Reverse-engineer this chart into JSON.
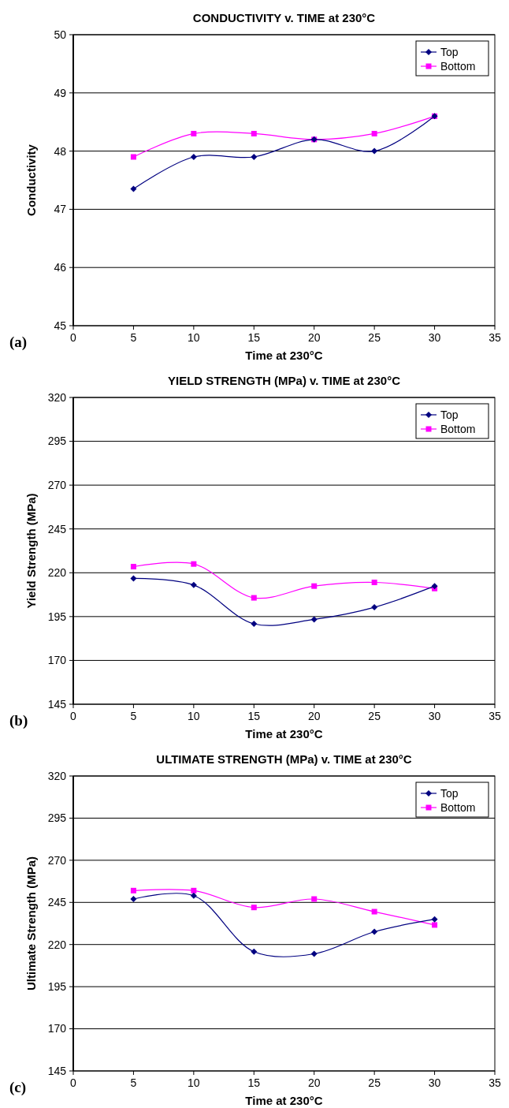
{
  "chart_data": [
    {
      "type": "line",
      "title": "CONDUCTIVITY v. TIME at 230°C",
      "xlabel": "Time at 230°C",
      "ylabel": "Conductivity",
      "annotations": [
        "(a)"
      ],
      "x": [
        5,
        10,
        15,
        20,
        25,
        30
      ],
      "xlim": [
        0,
        35
      ],
      "xticks": [
        0,
        5,
        10,
        15,
        20,
        25,
        30,
        35
      ],
      "ylim": [
        45,
        50
      ],
      "yticks": [
        45,
        46,
        47,
        48,
        49,
        50
      ],
      "grid": "y",
      "legend": "top right",
      "series": [
        {
          "name": "Top",
          "color": "#000080",
          "marker": "diamond",
          "values": [
            47.35,
            47.9,
            47.9,
            48.2,
            48.0,
            48.6
          ]
        },
        {
          "name": "Bottom",
          "color": "#ff00ff",
          "marker": "square",
          "values": [
            47.9,
            48.3,
            48.3,
            48.2,
            48.3,
            48.6
          ]
        }
      ]
    },
    {
      "type": "line",
      "title": "YIELD STRENGTH (MPa) v. TIME at 230°C",
      "xlabel": "Time at 230°C",
      "ylabel": "Yield Strength (MPa)",
      "annotations": [
        "(b)"
      ],
      "x": [
        5,
        10,
        15,
        20,
        25,
        30
      ],
      "xlim": [
        0,
        35
      ],
      "xticks": [
        0,
        5,
        10,
        15,
        20,
        25,
        30,
        35
      ],
      "ylim": [
        145,
        320
      ],
      "yticks": [
        145,
        170,
        195,
        220,
        245,
        270,
        295,
        320
      ],
      "grid": "y",
      "legend": "top right",
      "series": [
        {
          "name": "Top",
          "color": "#000080",
          "marker": "diamond",
          "values": [
            216.8,
            213,
            190.9,
            193.4,
            200.3,
            212.4
          ]
        },
        {
          "name": "Bottom",
          "color": "#ff00ff",
          "marker": "square",
          "values": [
            223.5,
            225,
            205.7,
            212.4,
            214.5,
            211
          ]
        }
      ]
    },
    {
      "type": "line",
      "title": "ULTIMATE STRENGTH (MPa) v. TIME at 230°C",
      "xlabel": "Time at 230°C",
      "ylabel": "Ultimate Strength (MPa)",
      "annotations": [
        "(c)"
      ],
      "x": [
        5,
        10,
        15,
        20,
        25,
        30
      ],
      "xlim": [
        0,
        35
      ],
      "xticks": [
        0,
        5,
        10,
        15,
        20,
        25,
        30,
        35
      ],
      "ylim": [
        145,
        320
      ],
      "yticks": [
        145,
        170,
        195,
        220,
        245,
        270,
        295,
        320
      ],
      "grid": "y",
      "legend": "top right",
      "series": [
        {
          "name": "Top",
          "color": "#000080",
          "marker": "diamond",
          "values": [
            247,
            249,
            215.8,
            214.5,
            227.6,
            235
          ]
        },
        {
          "name": "Bottom",
          "color": "#ff00ff",
          "marker": "square",
          "values": [
            252,
            252,
            242,
            247,
            239.5,
            231.6
          ]
        }
      ]
    }
  ]
}
